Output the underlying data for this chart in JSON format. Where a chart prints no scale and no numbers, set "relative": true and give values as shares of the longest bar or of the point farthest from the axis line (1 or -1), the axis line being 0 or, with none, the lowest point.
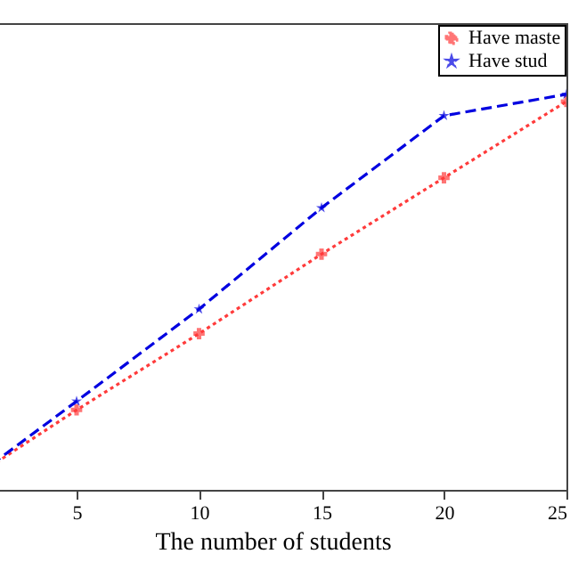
{
  "chart_data": {
    "type": "line",
    "xlabel": "The number of students",
    "x": [
      1,
      5,
      10,
      15,
      20,
      25
    ],
    "xlim": [
      1,
      25
    ],
    "xticks": [
      5,
      10,
      15,
      20,
      25
    ],
    "relative": true,
    "legend": "top right",
    "grid": false,
    "series": [
      {
        "name": "Have maste",
        "color": "#ff3b3b",
        "marker": "cross",
        "line_style": "dotted",
        "values": [
          0.04,
          0.202,
          0.395,
          0.596,
          0.789,
          0.982
        ]
      },
      {
        "name": "Have stud",
        "color": "#0000e0",
        "marker": "star",
        "line_style": "dashed",
        "values": [
          0.04,
          0.224,
          0.457,
          0.713,
          0.946,
          1.0
        ]
      }
    ]
  }
}
